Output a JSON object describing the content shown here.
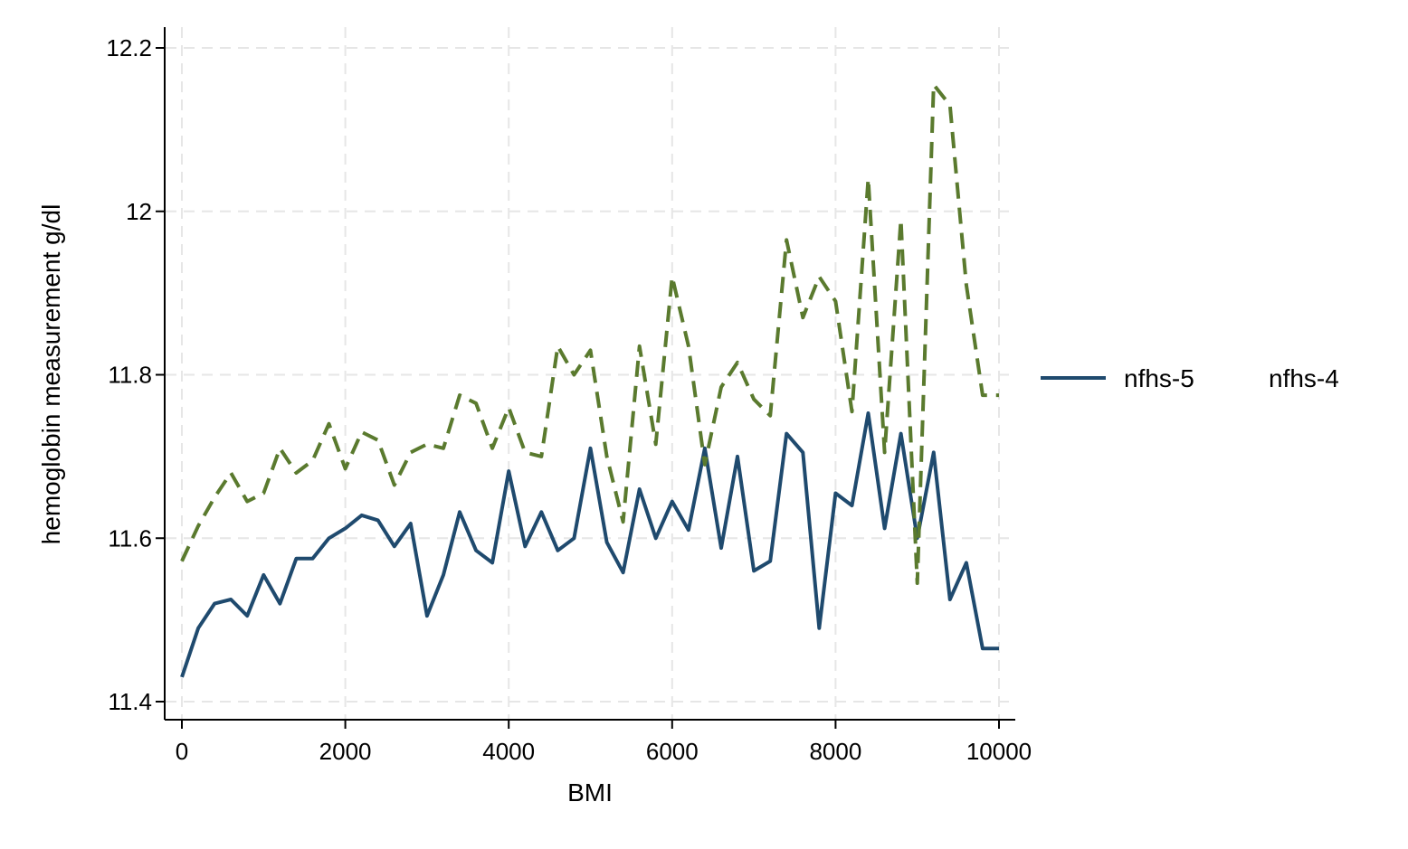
{
  "chart_data": {
    "type": "line",
    "title": "",
    "xlabel": "BMI",
    "ylabel": "hemoglobin measurement g/dl",
    "xlim": [
      0,
      10000
    ],
    "ylim": [
      11.4,
      12.2
    ],
    "xticks": [
      0,
      2000,
      4000,
      6000,
      8000,
      10000
    ],
    "xtick_labels": [
      "0",
      "2000",
      "4000",
      "6000",
      "8000",
      "10000"
    ],
    "yticks": [
      11.4,
      11.6,
      11.8,
      12,
      12.2
    ],
    "ytick_labels": [
      "11.4",
      "11.6",
      "11.8",
      "12",
      "12.2"
    ],
    "grid": true,
    "legend_position": "right",
    "x": [
      0,
      200,
      400,
      600,
      800,
      1000,
      1200,
      1400,
      1600,
      1800,
      2000,
      2200,
      2400,
      2600,
      2800,
      3000,
      3200,
      3400,
      3600,
      3800,
      4000,
      4200,
      4400,
      4600,
      4800,
      5000,
      5200,
      5400,
      5600,
      5800,
      6000,
      6200,
      6400,
      6600,
      6800,
      7000,
      7200,
      7400,
      7600,
      7800,
      8000,
      8200,
      8400,
      8600,
      8800,
      9000,
      9200,
      9400,
      9600,
      9800,
      10000
    ],
    "series": [
      {
        "name": "nfhs-5",
        "color": "#1f4a6e",
        "style": "solid",
        "values": [
          11.43,
          11.49,
          11.52,
          11.525,
          11.505,
          11.555,
          11.52,
          11.575,
          11.575,
          11.6,
          11.612,
          11.628,
          11.622,
          11.59,
          11.618,
          11.505,
          11.555,
          11.632,
          11.585,
          11.57,
          11.682,
          11.59,
          11.632,
          11.585,
          11.6,
          11.71,
          11.595,
          11.558,
          11.66,
          11.6,
          11.645,
          11.61,
          11.71,
          11.588,
          11.7,
          11.56,
          11.572,
          11.728,
          11.705,
          11.49,
          11.655,
          11.64,
          11.753,
          11.612,
          11.728,
          11.6,
          11.705,
          11.525,
          11.57,
          11.465,
          11.465
        ]
      },
      {
        "name": "nfhs-4",
        "color": "#5a7a2e",
        "style": "dashed",
        "values": [
          11.572,
          11.615,
          11.65,
          11.68,
          11.645,
          11.655,
          11.71,
          11.68,
          11.695,
          11.74,
          11.685,
          11.73,
          11.72,
          11.665,
          11.705,
          11.715,
          11.71,
          11.775,
          11.765,
          11.71,
          11.76,
          11.705,
          11.7,
          11.835,
          11.8,
          11.83,
          11.7,
          11.62,
          11.835,
          11.715,
          11.92,
          11.835,
          11.69,
          11.785,
          11.815,
          11.77,
          11.75,
          11.965,
          11.87,
          11.92,
          11.89,
          11.755,
          12.04,
          11.705,
          11.99,
          11.545,
          12.155,
          12.13,
          11.91,
          11.775,
          11.775
        ]
      }
    ]
  }
}
